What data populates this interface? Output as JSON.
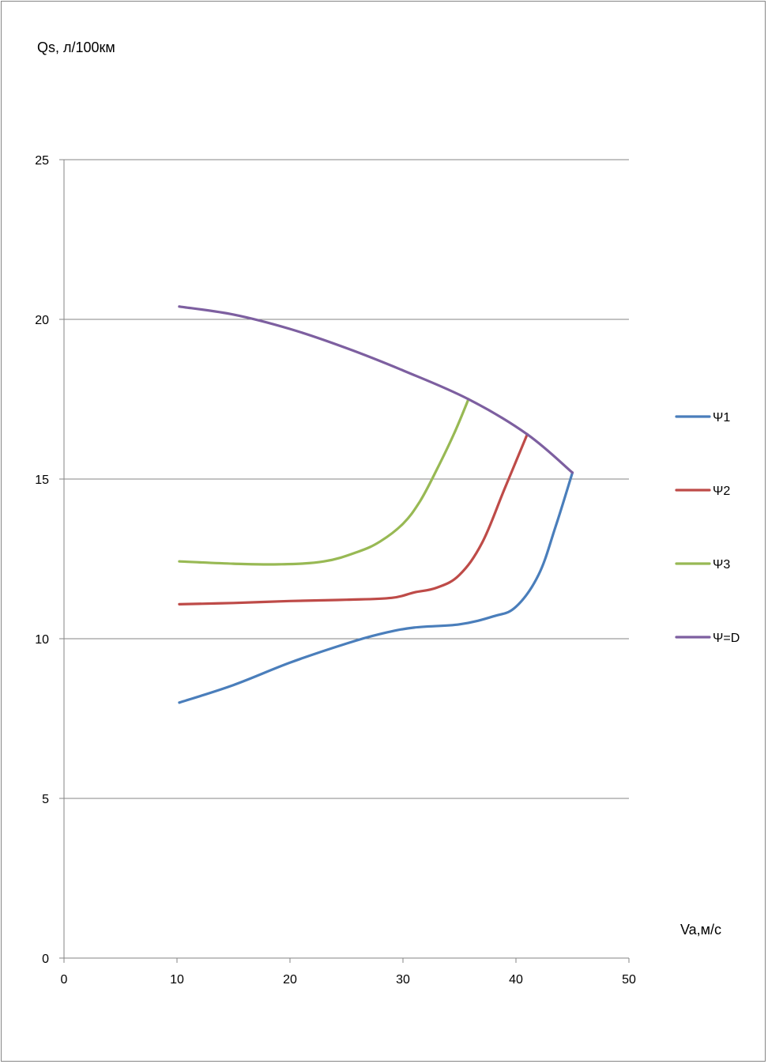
{
  "chart_data": {
    "type": "line",
    "ylabel": "Qs, л/100км",
    "xlabel": "Va,м/с",
    "xlim": [
      0,
      50
    ],
    "ylim": [
      0,
      25
    ],
    "x_ticks": [
      "0",
      "10",
      "20",
      "30",
      "40",
      "50"
    ],
    "y_ticks": [
      "0",
      "5",
      "10",
      "15",
      "20",
      "25"
    ],
    "grid": "horizontal",
    "legend_position": "right",
    "series": [
      {
        "name": "Ψ1",
        "color": "#4A7EBB",
        "x": [
          10.2,
          15,
          20,
          25,
          28,
          31,
          35,
          38,
          40,
          42,
          43.5,
          45
        ],
        "y": [
          8.0,
          8.55,
          9.25,
          9.85,
          10.15,
          10.35,
          10.45,
          10.7,
          11.0,
          12.0,
          13.5,
          15.2
        ]
      },
      {
        "name": "Ψ2",
        "color": "#BE4B48",
        "x": [
          10.2,
          15,
          20,
          25,
          29,
          31,
          33,
          35,
          37,
          39,
          41
        ],
        "y": [
          11.08,
          11.12,
          11.18,
          11.22,
          11.28,
          11.45,
          11.6,
          12.0,
          13.0,
          14.7,
          16.4
        ]
      },
      {
        "name": "Ψ3",
        "color": "#98B954",
        "x": [
          10.2,
          15,
          19,
          23,
          26,
          28,
          30,
          31.5,
          33,
          34.5,
          35.8
        ],
        "y": [
          12.42,
          12.35,
          12.33,
          12.42,
          12.72,
          13.05,
          13.6,
          14.3,
          15.3,
          16.4,
          17.5
        ]
      },
      {
        "name": "Ψ=D",
        "color": "#7D5FA0",
        "x": [
          10.2,
          15,
          20,
          25,
          30,
          35.8,
          41,
          45
        ],
        "y": [
          20.4,
          20.15,
          19.7,
          19.1,
          18.4,
          17.5,
          16.4,
          15.2
        ]
      }
    ]
  }
}
